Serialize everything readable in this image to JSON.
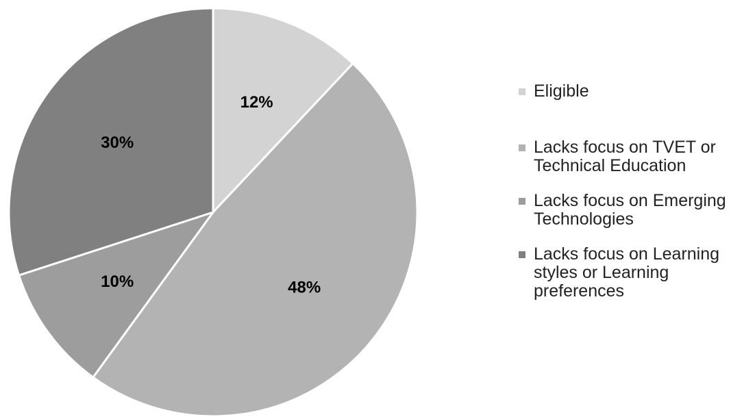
{
  "chart_data": {
    "type": "pie",
    "title": "",
    "start_angle_degrees_from_top": 0,
    "direction": "clockwise",
    "categories": [
      "Eligible",
      "Lacks focus on TVET or Technical Education",
      "Lacks focus on Emerging Technologies",
      "Lacks focus on Learning styles or Learning preferences"
    ],
    "values": [
      12,
      48,
      10,
      30
    ],
    "labels": [
      "12%",
      "48%",
      "10%",
      "30%"
    ],
    "colors": [
      "#d3d3d3",
      "#b3b3b3",
      "#9d9d9d",
      "#808080"
    ],
    "legend_position": "right"
  }
}
